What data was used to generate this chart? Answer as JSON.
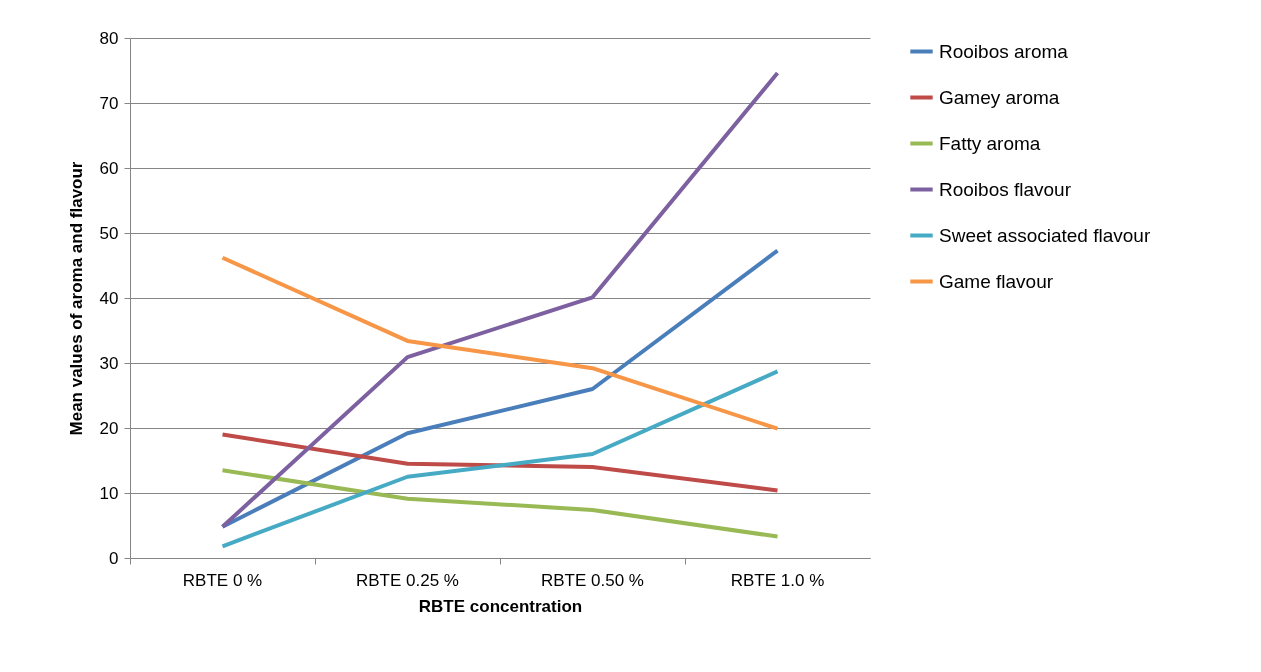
{
  "chart_data": {
    "type": "line",
    "xlabel": "RBTE concentration",
    "ylabel": "Mean values of aroma and flavour",
    "categories": [
      "RBTE 0 %",
      "RBTE 0.25 %",
      "RBTE 0.50 %",
      "RBTE 1.0 %"
    ],
    "ylim": [
      0,
      80
    ],
    "yticks": [
      0,
      10,
      20,
      30,
      40,
      50,
      60,
      70,
      80
    ],
    "grid": "y",
    "legend": "right",
    "marker": "none",
    "line_style": "solid",
    "series": [
      {
        "name": "Rooibos aroma",
        "color": "#4a7ebb",
        "values": [
          4.8,
          19.2,
          26,
          47.3
        ]
      },
      {
        "name": "Gamey aroma",
        "color": "#be4b48",
        "values": [
          19,
          14.5,
          14,
          10.4
        ]
      },
      {
        "name": "Fatty aroma",
        "color": "#98b954",
        "values": [
          13.5,
          9.1,
          7.4,
          3.3
        ]
      },
      {
        "name": "Rooibos flavour",
        "color": "#7d60a0",
        "values": [
          4.8,
          30.9,
          40.1,
          74.6
        ]
      },
      {
        "name": "Sweet associated flavour",
        "color": "#46aac5",
        "values": [
          1.8,
          12.5,
          16,
          28.7
        ]
      },
      {
        "name": "Game flavour",
        "color": "#f79646",
        "values": [
          46.2,
          33.4,
          29.2,
          19.9
        ]
      }
    ]
  }
}
